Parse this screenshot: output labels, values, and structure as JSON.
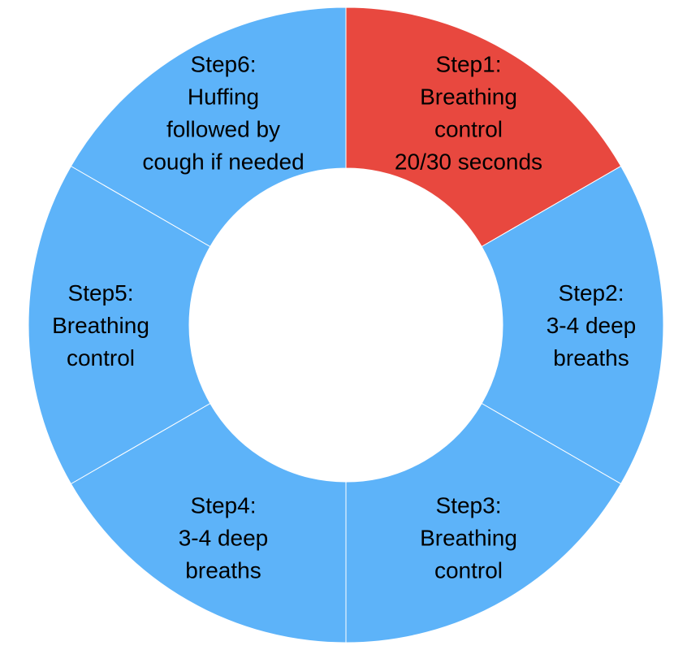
{
  "diagram": {
    "colors": {
      "active": "#e8483f",
      "inactive": "#5db3f9",
      "divider": "#ffffff",
      "text": "#000000"
    },
    "segments": [
      {
        "lines": [
          "Step1:",
          "Breathing",
          "control",
          "20/30 seconds"
        ],
        "active": true
      },
      {
        "lines": [
          "Step2:",
          "3-4 deep",
          "breaths"
        ],
        "active": false
      },
      {
        "lines": [
          "Step3:",
          "Breathing",
          "control"
        ],
        "active": false
      },
      {
        "lines": [
          "Step4:",
          "3-4 deep",
          "breaths"
        ],
        "active": false
      },
      {
        "lines": [
          "Step5:",
          "Breathing",
          "control"
        ],
        "active": false
      },
      {
        "lines": [
          "Step6:",
          "Huffing",
          "followed by",
          "cough if needed"
        ],
        "active": false
      }
    ]
  }
}
